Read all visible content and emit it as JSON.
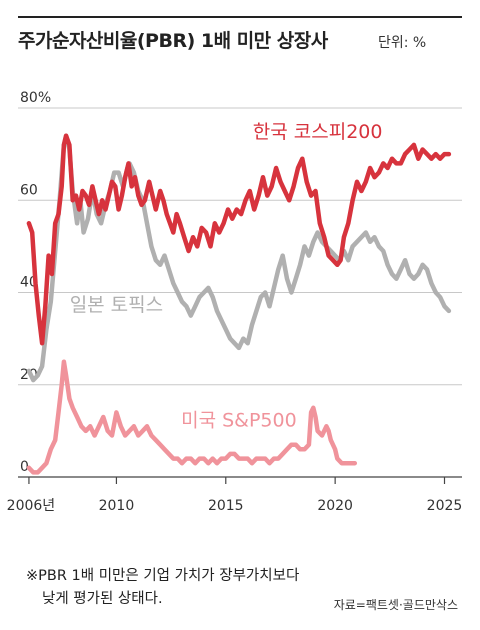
{
  "header": {
    "title": "주가순자산비율(PBR) 1배 미만 상장사",
    "unit_label": "단위: %"
  },
  "note": {
    "line1": "※PBR 1배 미만은 기업 가치가 장부가치보다",
    "line2": "낮게 평가된 상태다."
  },
  "source": "자료=팩트셋·골드만삭스",
  "chart_data": {
    "type": "line",
    "title": "주가순자산비율(PBR) 1배 미만 상장사",
    "unit": "단위: %",
    "ylim": [
      0,
      80
    ],
    "xlim": [
      2005.5,
      2025.8
    ],
    "y_ticks": [
      0,
      20,
      40,
      60,
      80
    ],
    "y_tick_labels": [
      "0",
      "20",
      "40",
      "60",
      "80%"
    ],
    "x_ticks": [
      2006,
      2010,
      2015,
      2020,
      2025
    ],
    "x_tick_labels": [
      "2006년",
      "2010",
      "2015",
      "2020",
      "2025"
    ],
    "grid": "horizontal",
    "legend": "inline labels",
    "series": [
      {
        "name": "한국 코스피200",
        "color": "#d7333d",
        "points": [
          [
            2006.0,
            55
          ],
          [
            2006.15,
            53
          ],
          [
            2006.3,
            42
          ],
          [
            2006.45,
            35
          ],
          [
            2006.6,
            29
          ],
          [
            2006.75,
            37
          ],
          [
            2006.9,
            48
          ],
          [
            2007.05,
            44
          ],
          [
            2007.2,
            55
          ],
          [
            2007.35,
            57
          ],
          [
            2007.5,
            63
          ],
          [
            2007.6,
            72
          ],
          [
            2007.7,
            74
          ],
          [
            2007.85,
            72
          ],
          [
            2008.0,
            60
          ],
          [
            2008.15,
            61
          ],
          [
            2008.3,
            58
          ],
          [
            2008.45,
            62
          ],
          [
            2008.6,
            61
          ],
          [
            2008.75,
            59
          ],
          [
            2008.9,
            63
          ],
          [
            2009.05,
            60
          ],
          [
            2009.2,
            57
          ],
          [
            2009.35,
            60
          ],
          [
            2009.5,
            58
          ],
          [
            2009.65,
            61
          ],
          [
            2009.8,
            64
          ],
          [
            2009.95,
            63
          ],
          [
            2010.1,
            58
          ],
          [
            2010.25,
            61
          ],
          [
            2010.4,
            65
          ],
          [
            2010.55,
            68
          ],
          [
            2010.7,
            63
          ],
          [
            2010.85,
            65
          ],
          [
            2011.0,
            61
          ],
          [
            2011.15,
            59
          ],
          [
            2011.3,
            60
          ],
          [
            2011.5,
            64
          ],
          [
            2011.65,
            61
          ],
          [
            2011.8,
            58
          ],
          [
            2012.0,
            62
          ],
          [
            2012.15,
            60
          ],
          [
            2012.3,
            57
          ],
          [
            2012.45,
            55
          ],
          [
            2012.6,
            53
          ],
          [
            2012.75,
            57
          ],
          [
            2012.9,
            55
          ],
          [
            2013.1,
            52
          ],
          [
            2013.3,
            49
          ],
          [
            2013.5,
            52
          ],
          [
            2013.7,
            50
          ],
          [
            2013.9,
            54
          ],
          [
            2014.1,
            53
          ],
          [
            2014.3,
            50
          ],
          [
            2014.5,
            55
          ],
          [
            2014.7,
            53
          ],
          [
            2014.9,
            55
          ],
          [
            2015.1,
            58
          ],
          [
            2015.3,
            56
          ],
          [
            2015.5,
            58
          ],
          [
            2015.7,
            57
          ],
          [
            2015.9,
            60
          ],
          [
            2016.1,
            62
          ],
          [
            2016.3,
            58
          ],
          [
            2016.5,
            61
          ],
          [
            2016.7,
            65
          ],
          [
            2016.9,
            61
          ],
          [
            2017.1,
            63
          ],
          [
            2017.3,
            67
          ],
          [
            2017.5,
            64
          ],
          [
            2017.7,
            62
          ],
          [
            2017.9,
            60
          ],
          [
            2018.1,
            63
          ],
          [
            2018.3,
            67
          ],
          [
            2018.5,
            69
          ],
          [
            2018.7,
            64
          ],
          [
            2018.9,
            61
          ],
          [
            2019.1,
            62
          ],
          [
            2019.3,
            55
          ],
          [
            2019.5,
            52
          ],
          [
            2019.7,
            48
          ],
          [
            2019.9,
            47
          ],
          [
            2020.1,
            46
          ],
          [
            2020.25,
            47
          ],
          [
            2020.4,
            52
          ],
          [
            2020.6,
            55
          ],
          [
            2020.8,
            60
          ],
          [
            2021.0,
            64
          ],
          [
            2021.2,
            62
          ],
          [
            2021.4,
            64
          ],
          [
            2021.6,
            67
          ],
          [
            2021.8,
            65
          ],
          [
            2022.0,
            66
          ],
          [
            2022.2,
            68
          ],
          [
            2022.4,
            67
          ],
          [
            2022.6,
            69
          ],
          [
            2022.8,
            68
          ],
          [
            2023.0,
            68
          ],
          [
            2023.2,
            70
          ],
          [
            2023.4,
            71
          ],
          [
            2023.6,
            72
          ],
          [
            2023.8,
            69
          ],
          [
            2024.0,
            71
          ],
          [
            2024.2,
            70
          ],
          [
            2024.4,
            69
          ],
          [
            2024.6,
            70
          ],
          [
            2024.8,
            69
          ],
          [
            2025.0,
            70
          ],
          [
            2025.2,
            70
          ]
        ]
      },
      {
        "name": "일본 토픽스",
        "color": "#b0b0b0",
        "points": [
          [
            2006.0,
            23
          ],
          [
            2006.2,
            21
          ],
          [
            2006.4,
            22
          ],
          [
            2006.6,
            24
          ],
          [
            2006.8,
            32
          ],
          [
            2007.0,
            38
          ],
          [
            2007.2,
            49
          ],
          [
            2007.4,
            60
          ],
          [
            2007.6,
            72
          ],
          [
            2007.7,
            74
          ],
          [
            2007.85,
            71
          ],
          [
            2008.0,
            62
          ],
          [
            2008.2,
            55
          ],
          [
            2008.35,
            60
          ],
          [
            2008.5,
            53
          ],
          [
            2008.7,
            56
          ],
          [
            2008.9,
            62
          ],
          [
            2009.1,
            57
          ],
          [
            2009.3,
            55
          ],
          [
            2009.5,
            59
          ],
          [
            2009.7,
            62
          ],
          [
            2009.9,
            66
          ],
          [
            2010.1,
            66
          ],
          [
            2010.3,
            63
          ],
          [
            2010.5,
            67
          ],
          [
            2010.6,
            68
          ],
          [
            2010.8,
            66
          ],
          [
            2011.0,
            62
          ],
          [
            2011.2,
            60
          ],
          [
            2011.4,
            55
          ],
          [
            2011.6,
            50
          ],
          [
            2011.8,
            47
          ],
          [
            2012.0,
            46
          ],
          [
            2012.2,
            48
          ],
          [
            2012.4,
            45
          ],
          [
            2012.6,
            42
          ],
          [
            2012.8,
            40
          ],
          [
            2013.0,
            38
          ],
          [
            2013.2,
            37
          ],
          [
            2013.4,
            35
          ],
          [
            2013.6,
            37
          ],
          [
            2013.8,
            39
          ],
          [
            2014.0,
            40
          ],
          [
            2014.2,
            41
          ],
          [
            2014.4,
            39
          ],
          [
            2014.6,
            36
          ],
          [
            2014.8,
            34
          ],
          [
            2015.0,
            32
          ],
          [
            2015.2,
            30
          ],
          [
            2015.4,
            29
          ],
          [
            2015.6,
            28
          ],
          [
            2015.8,
            30
          ],
          [
            2016.0,
            29
          ],
          [
            2016.2,
            33
          ],
          [
            2016.4,
            36
          ],
          [
            2016.6,
            39
          ],
          [
            2016.8,
            40
          ],
          [
            2017.0,
            37
          ],
          [
            2017.2,
            41
          ],
          [
            2017.4,
            45
          ],
          [
            2017.6,
            48
          ],
          [
            2017.8,
            43
          ],
          [
            2018.0,
            40
          ],
          [
            2018.2,
            43
          ],
          [
            2018.4,
            46
          ],
          [
            2018.6,
            50
          ],
          [
            2018.8,
            48
          ],
          [
            2019.0,
            51
          ],
          [
            2019.2,
            53
          ],
          [
            2019.4,
            51
          ],
          [
            2019.6,
            50
          ],
          [
            2019.8,
            49
          ],
          [
            2020.0,
            48
          ],
          [
            2020.2,
            47
          ],
          [
            2020.4,
            49
          ],
          [
            2020.6,
            47
          ],
          [
            2020.8,
            50
          ],
          [
            2021.0,
            51
          ],
          [
            2021.2,
            52
          ],
          [
            2021.4,
            53
          ],
          [
            2021.6,
            51
          ],
          [
            2021.8,
            52
          ],
          [
            2022.0,
            50
          ],
          [
            2022.2,
            49
          ],
          [
            2022.4,
            46
          ],
          [
            2022.6,
            44
          ],
          [
            2022.8,
            43
          ],
          [
            2023.0,
            45
          ],
          [
            2023.2,
            47
          ],
          [
            2023.4,
            44
          ],
          [
            2023.6,
            43
          ],
          [
            2023.8,
            44
          ],
          [
            2024.0,
            46
          ],
          [
            2024.2,
            45
          ],
          [
            2024.4,
            42
          ],
          [
            2024.6,
            40
          ],
          [
            2024.8,
            39
          ],
          [
            2025.0,
            37
          ],
          [
            2025.2,
            36
          ]
        ]
      },
      {
        "name": "미국 S&P500",
        "color": "#f0939b",
        "points": [
          [
            2006.0,
            2
          ],
          [
            2006.2,
            1
          ],
          [
            2006.4,
            1
          ],
          [
            2006.6,
            2
          ],
          [
            2006.8,
            3
          ],
          [
            2007.0,
            6
          ],
          [
            2007.2,
            8
          ],
          [
            2007.35,
            14
          ],
          [
            2007.5,
            20
          ],
          [
            2007.6,
            25
          ],
          [
            2007.7,
            22
          ],
          [
            2007.85,
            17
          ],
          [
            2008.0,
            15
          ],
          [
            2008.2,
            13
          ],
          [
            2008.4,
            11
          ],
          [
            2008.6,
            10
          ],
          [
            2008.8,
            11
          ],
          [
            2009.0,
            9
          ],
          [
            2009.2,
            11
          ],
          [
            2009.4,
            13
          ],
          [
            2009.6,
            10
          ],
          [
            2009.8,
            9
          ],
          [
            2010.0,
            14
          ],
          [
            2010.2,
            11
          ],
          [
            2010.4,
            9
          ],
          [
            2010.6,
            10
          ],
          [
            2010.8,
            11
          ],
          [
            2011.0,
            9
          ],
          [
            2011.2,
            10
          ],
          [
            2011.4,
            11
          ],
          [
            2011.6,
            9
          ],
          [
            2011.8,
            8
          ],
          [
            2012.0,
            7
          ],
          [
            2012.2,
            6
          ],
          [
            2012.4,
            5
          ],
          [
            2012.6,
            4
          ],
          [
            2012.8,
            4
          ],
          [
            2013.0,
            3
          ],
          [
            2013.2,
            4
          ],
          [
            2013.4,
            4
          ],
          [
            2013.6,
            3
          ],
          [
            2013.8,
            4
          ],
          [
            2014.0,
            4
          ],
          [
            2014.2,
            3
          ],
          [
            2014.4,
            4
          ],
          [
            2014.6,
            3
          ],
          [
            2014.8,
            4
          ],
          [
            2015.0,
            4
          ],
          [
            2015.2,
            5
          ],
          [
            2015.4,
            5
          ],
          [
            2015.6,
            4
          ],
          [
            2015.8,
            4
          ],
          [
            2016.0,
            4
          ],
          [
            2016.2,
            3
          ],
          [
            2016.4,
            4
          ],
          [
            2016.6,
            4
          ],
          [
            2016.8,
            4
          ],
          [
            2017.0,
            3
          ],
          [
            2017.2,
            4
          ],
          [
            2017.4,
            4
          ],
          [
            2017.6,
            5
          ],
          [
            2017.8,
            6
          ],
          [
            2018.0,
            7
          ],
          [
            2018.2,
            7
          ],
          [
            2018.4,
            6
          ],
          [
            2018.6,
            6
          ],
          [
            2018.8,
            7
          ],
          [
            2018.9,
            14
          ],
          [
            2019.0,
            15
          ],
          [
            2019.1,
            13
          ],
          [
            2019.2,
            10
          ],
          [
            2019.4,
            9
          ],
          [
            2019.6,
            11
          ],
          [
            2019.7,
            10
          ],
          [
            2019.8,
            8
          ],
          [
            2020.0,
            6
          ],
          [
            2020.1,
            4
          ],
          [
            2020.3,
            3
          ],
          [
            2020.5,
            3
          ],
          [
            2020.7,
            3
          ],
          [
            2020.9,
            3
          ]
        ]
      }
    ],
    "series_label_positions": "inline"
  }
}
